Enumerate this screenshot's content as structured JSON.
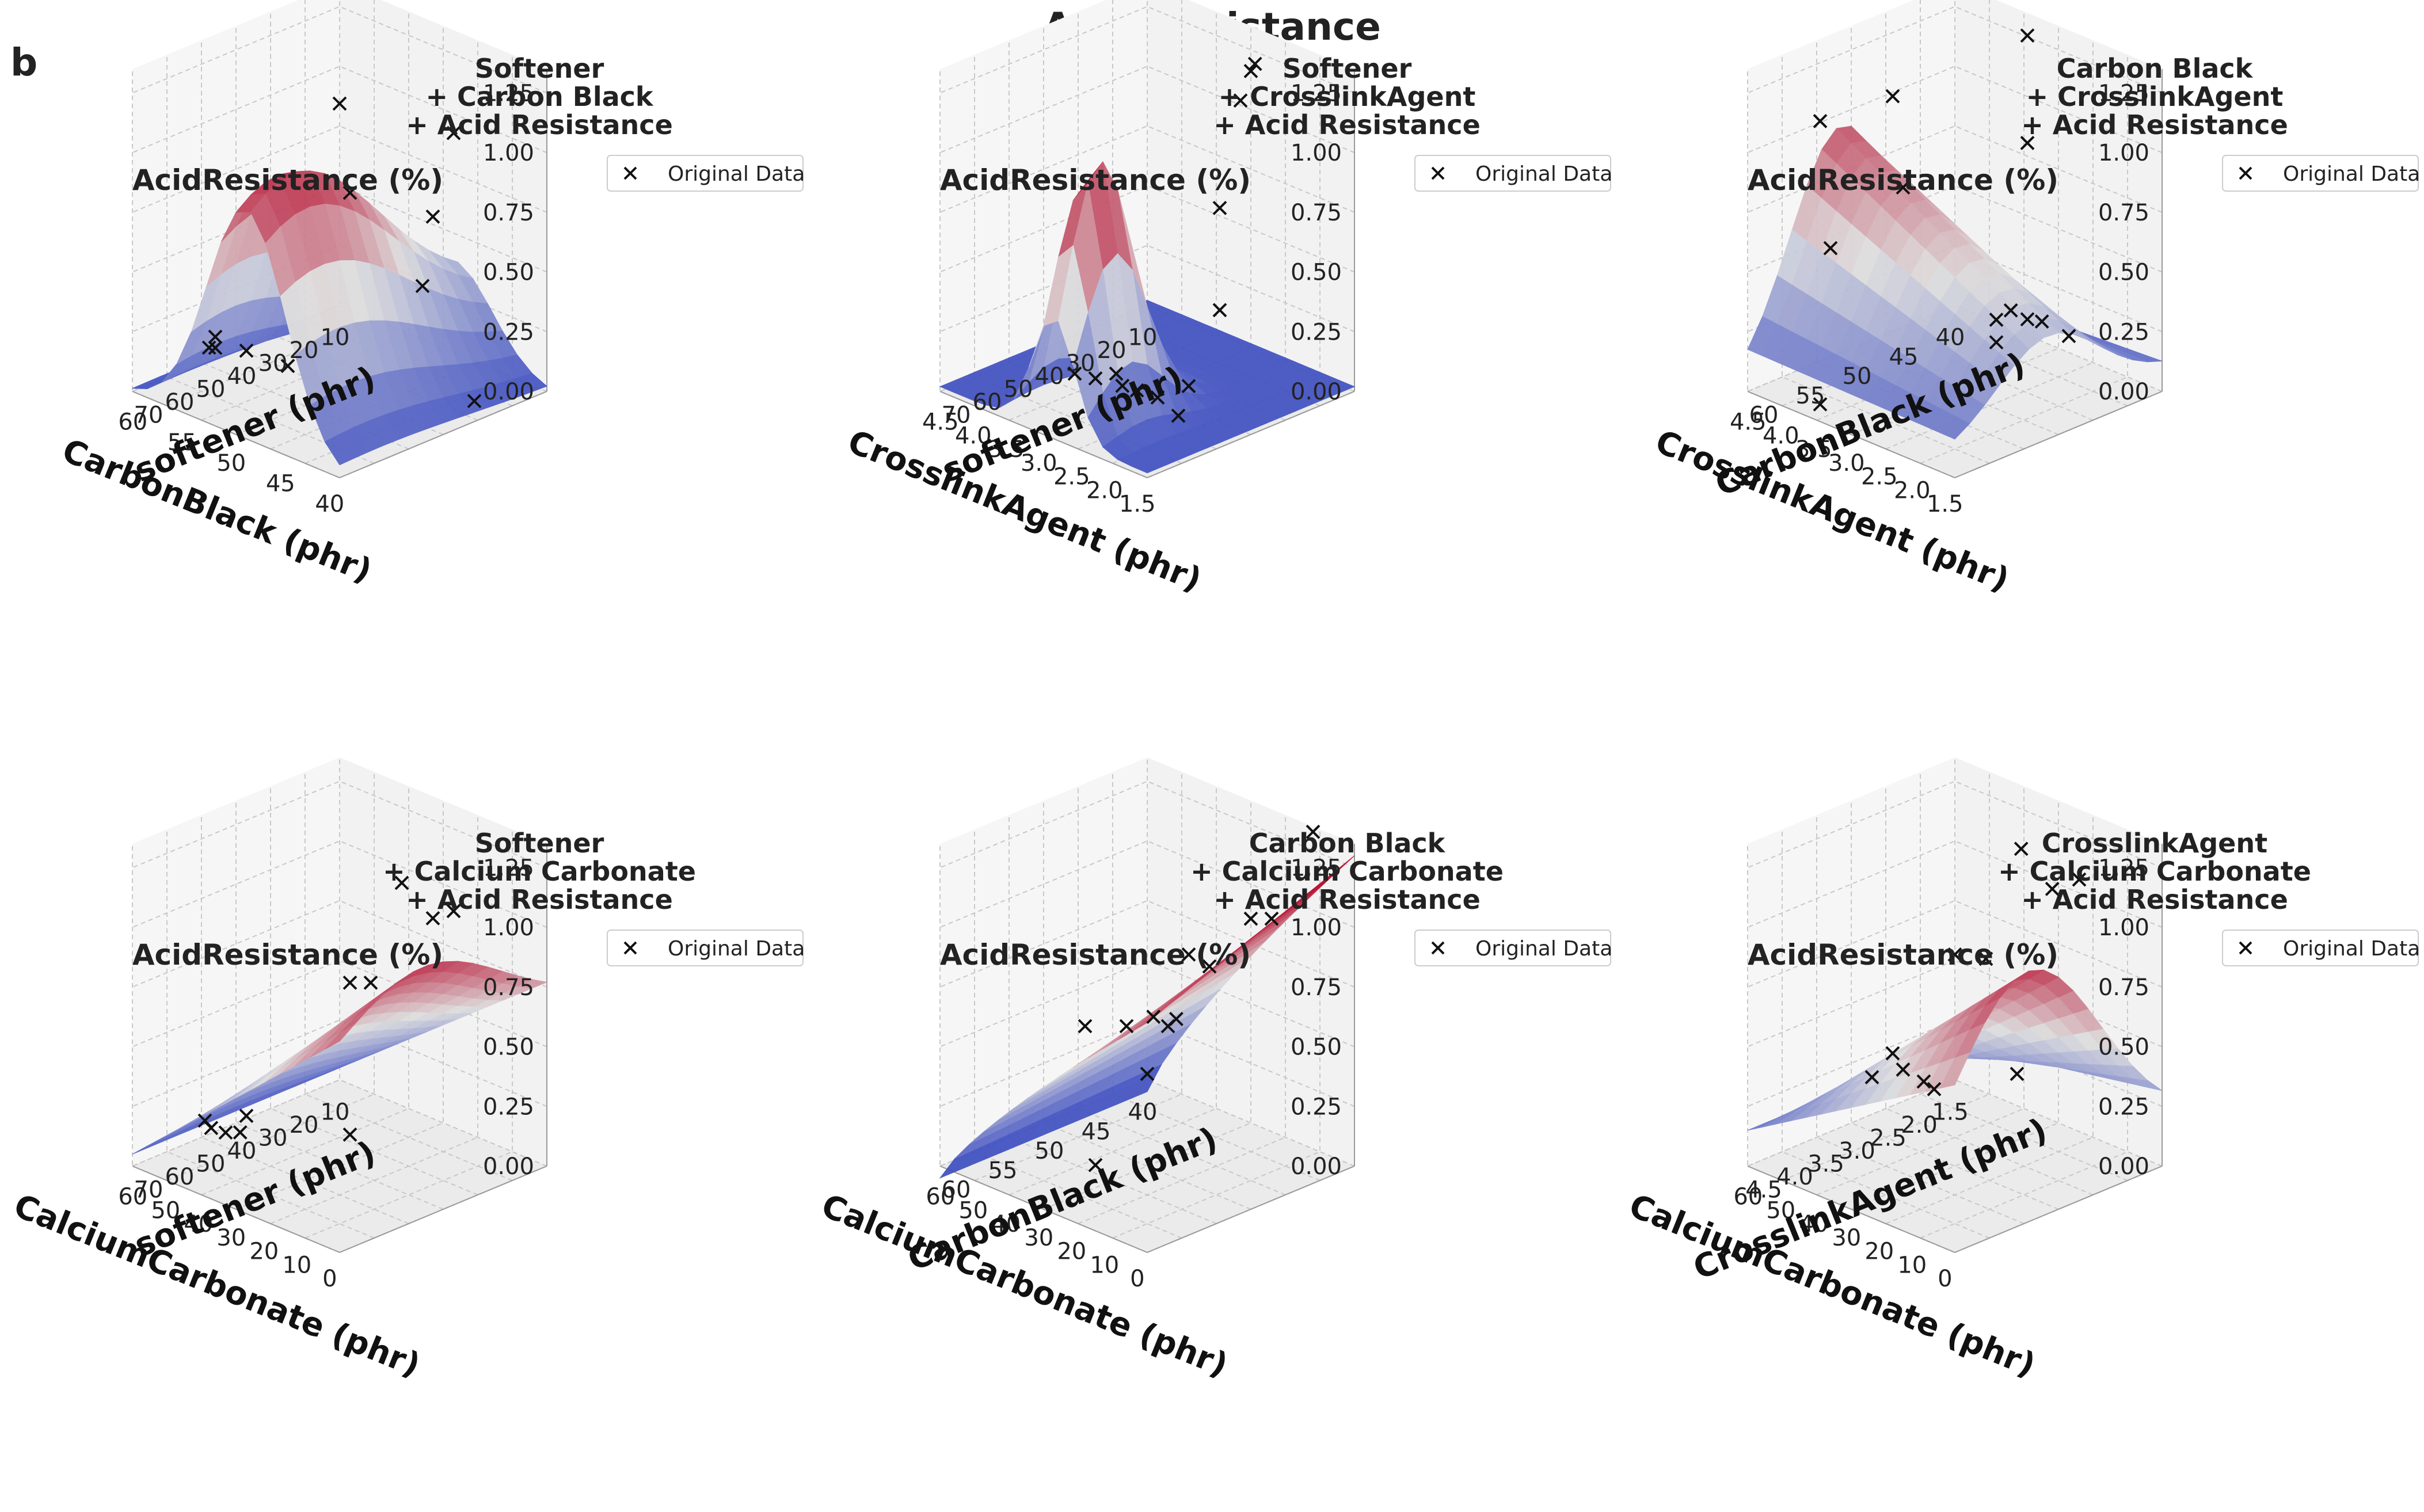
{
  "figure": {
    "title": "Acid Resistance",
    "panel_letter": "b",
    "palette": {
      "low": "#3b4cc0",
      "mid": "#dddddd",
      "high": "#b40426",
      "marker": "#111111",
      "grid": "#c8c8c8",
      "pane": "#f2f2f2"
    }
  },
  "chart_data": [
    {
      "type": "surface3d",
      "title_lines": [
        "Softener",
        "+ Carbon Black",
        "+ Acid Resistance"
      ],
      "zlabel": "AcidResistance (%)",
      "legend": "Original Data",
      "z_ticks": [
        "0.00",
        "0.25",
        "0.50",
        "0.75",
        "1.00",
        "1.25"
      ],
      "left_axis": {
        "label": "CarbonBlack (phr)",
        "ticks": [
          "40",
          "45",
          "50",
          "55",
          "60"
        ]
      },
      "right_axis": {
        "label": "softener (phr)",
        "ticks": [
          "70",
          "60",
          "50",
          "40",
          "30",
          "20",
          "10"
        ]
      },
      "surface_shape": "ridge",
      "points": [
        [
          0.05,
          0.35,
          0.12
        ],
        [
          0.07,
          0.3,
          0.1
        ],
        [
          0.1,
          0.3,
          0.11
        ],
        [
          0.15,
          0.4,
          0.08
        ],
        [
          0.2,
          0.55,
          -0.02
        ],
        [
          0.55,
          0.5,
          0.85
        ],
        [
          0.7,
          0.3,
          1.35
        ],
        [
          0.75,
          0.7,
          0.75
        ],
        [
          0.8,
          0.75,
          1.1
        ],
        [
          0.85,
          0.55,
          0.55
        ],
        [
          0.95,
          0.7,
          0.05
        ]
      ]
    },
    {
      "type": "surface3d",
      "title_lines": [
        "Softener",
        "+ CrosslinkAgent",
        "+ Acid Resistance"
      ],
      "zlabel": "AcidResistance (%)",
      "legend": "Original Data",
      "z_ticks": [
        "0.00",
        "0.25",
        "0.50",
        "0.75",
        "1.00",
        "1.25"
      ],
      "left_axis": {
        "label": "CrosslinkAgent (phr)",
        "ticks": [
          "1.5",
          "2.0",
          "2.5",
          "3.0",
          "3.5",
          "4.0",
          "4.5"
        ]
      },
      "right_axis": {
        "label": "softener (phr)",
        "ticks": [
          "70",
          "60",
          "50",
          "40",
          "30",
          "20",
          "10"
        ]
      },
      "surface_shape": "peak",
      "points": [
        [
          0.25,
          0.4,
          0.02
        ],
        [
          0.3,
          0.45,
          0.0
        ],
        [
          0.35,
          0.5,
          0.02
        ],
        [
          0.38,
          0.5,
          -0.02
        ],
        [
          0.4,
          0.55,
          -0.05
        ],
        [
          0.45,
          0.6,
          -0.08
        ],
        [
          0.5,
          0.7,
          -0.05
        ],
        [
          0.55,
          0.6,
          -0.12
        ],
        [
          0.55,
          0.8,
          0.25
        ],
        [
          0.65,
          0.7,
          0.75
        ],
        [
          0.7,
          0.75,
          1.2
        ],
        [
          0.72,
          0.78,
          1.32
        ],
        [
          0.73,
          0.79,
          1.35
        ]
      ]
    },
    {
      "type": "surface3d",
      "title_lines": [
        "Carbon Black",
        "+ CrosslinkAgent",
        "+ Acid Resistance"
      ],
      "zlabel": "AcidResistance (%)",
      "legend": "Original Data",
      "z_ticks": [
        "0.00",
        "0.25",
        "0.50",
        "0.75",
        "1.00",
        "1.25"
      ],
      "left_axis": {
        "label": "CrosslinkAgent (phr)",
        "ticks": [
          "1.5",
          "2.0",
          "2.5",
          "3.0",
          "3.5",
          "4.0",
          "4.5"
        ]
      },
      "right_axis": {
        "label": "CarbonBlack (phr)",
        "ticks": [
          "60",
          "55",
          "50",
          "45",
          "40"
        ]
      },
      "surface_shape": "saddle",
      "points": [
        [
          0.2,
          0.15,
          1.15
        ],
        [
          0.2,
          0.2,
          0.6
        ],
        [
          0.25,
          0.1,
          0.0
        ],
        [
          0.3,
          0.4,
          1.2
        ],
        [
          0.3,
          0.45,
          0.8
        ],
        [
          0.55,
          0.8,
          1.4
        ],
        [
          0.55,
          0.8,
          0.95
        ],
        [
          0.6,
          0.6,
          0.3
        ],
        [
          0.62,
          0.58,
          0.22
        ],
        [
          0.65,
          0.62,
          0.35
        ],
        [
          0.7,
          0.65,
          0.32
        ],
        [
          0.72,
          0.7,
          0.3
        ],
        [
          0.8,
          0.75,
          0.25
        ]
      ]
    },
    {
      "type": "surface3d",
      "title_lines": [
        "Softener",
        "+ Calcium Carbonate",
        "+ Acid Resistance"
      ],
      "zlabel": "AcidResistance (%)",
      "legend": "Original Data",
      "z_ticks": [
        "0.00",
        "0.25",
        "0.50",
        "0.75",
        "1.00",
        "1.25"
      ],
      "left_axis": {
        "label": "CalciumCarbonate (phr)",
        "ticks": [
          "0",
          "10",
          "20",
          "30",
          "40",
          "50",
          "60"
        ]
      },
      "right_axis": {
        "label": "softener (phr)",
        "ticks": [
          "70",
          "60",
          "50",
          "40",
          "30",
          "20",
          "10"
        ]
      },
      "surface_shape": "slope",
      "points": [
        [
          0.05,
          0.3,
          0.1
        ],
        [
          0.08,
          0.3,
          0.08
        ],
        [
          0.1,
          0.35,
          0.05
        ],
        [
          0.12,
          0.4,
          0.04
        ],
        [
          0.15,
          0.4,
          0.12
        ],
        [
          0.5,
          0.55,
          0.75
        ],
        [
          0.55,
          0.6,
          0.75
        ],
        [
          0.6,
          0.7,
          1.15
        ],
        [
          0.7,
          0.75,
          1.02
        ],
        [
          0.75,
          0.8,
          1.05
        ],
        [
          0.55,
          0.5,
          0.15
        ]
      ]
    },
    {
      "type": "surface3d",
      "title_lines": [
        "Carbon Black",
        "+ Calcium Carbonate",
        "+ Acid Resistance"
      ],
      "zlabel": "AcidResistance (%)",
      "legend": "Original Data",
      "z_ticks": [
        "0.00",
        "0.25",
        "0.50",
        "0.75",
        "1.00",
        "1.25"
      ],
      "left_axis": {
        "label": "CalciumCarbonate (phr)",
        "ticks": [
          "0",
          "10",
          "20",
          "30",
          "40",
          "50",
          "60"
        ]
      },
      "right_axis": {
        "label": "CarbonBlack (phr)",
        "ticks": [
          "60",
          "55",
          "50",
          "45",
          "40"
        ]
      },
      "surface_shape": "rising",
      "points": [
        [
          0.3,
          0.4,
          0.55
        ],
        [
          0.3,
          0.45,
          -0.05
        ],
        [
          0.4,
          0.5,
          0.55
        ],
        [
          0.45,
          0.55,
          0.35
        ],
        [
          0.48,
          0.55,
          0.6
        ],
        [
          0.5,
          0.6,
          0.55
        ],
        [
          0.52,
          0.62,
          0.58
        ],
        [
          0.55,
          0.65,
          0.85
        ],
        [
          0.6,
          0.7,
          0.8
        ],
        [
          0.7,
          0.8,
          1.0
        ],
        [
          0.75,
          0.85,
          1.0
        ],
        [
          0.9,
          0.9,
          1.4
        ]
      ]
    },
    {
      "type": "surface3d",
      "title_lines": [
        "CrosslinkAgent",
        "+ Calcium Carbonate",
        "+ Acid Resistance"
      ],
      "zlabel": "AcidResistance (%)",
      "legend": "Original Data",
      "z_ticks": [
        "0.00",
        "0.25",
        "0.50",
        "0.75",
        "1.00",
        "1.25"
      ],
      "left_axis": {
        "label": "CalciumCarbonate (phr)",
        "ticks": [
          "0",
          "10",
          "20",
          "30",
          "40",
          "50",
          "60"
        ]
      },
      "right_axis": {
        "label": "CrosslinkAgent (phr)",
        "ticks": [
          "4.5",
          "4.0",
          "3.5",
          "3.0",
          "2.5",
          "2.0",
          "1.5"
        ]
      },
      "surface_shape": "hump",
      "points": [
        [
          0.2,
          0.4,
          0.3
        ],
        [
          0.25,
          0.45,
          0.4
        ],
        [
          0.3,
          0.45,
          0.35
        ],
        [
          0.35,
          0.5,
          0.3
        ],
        [
          0.35,
          0.55,
          0.25
        ],
        [
          0.45,
          0.55,
          0.85
        ],
        [
          0.55,
          0.6,
          0.85
        ],
        [
          0.6,
          0.7,
          0.35
        ],
        [
          0.62,
          0.7,
          1.3
        ],
        [
          0.72,
          0.75,
          1.15
        ],
        [
          0.8,
          0.8,
          1.2
        ]
      ]
    }
  ]
}
